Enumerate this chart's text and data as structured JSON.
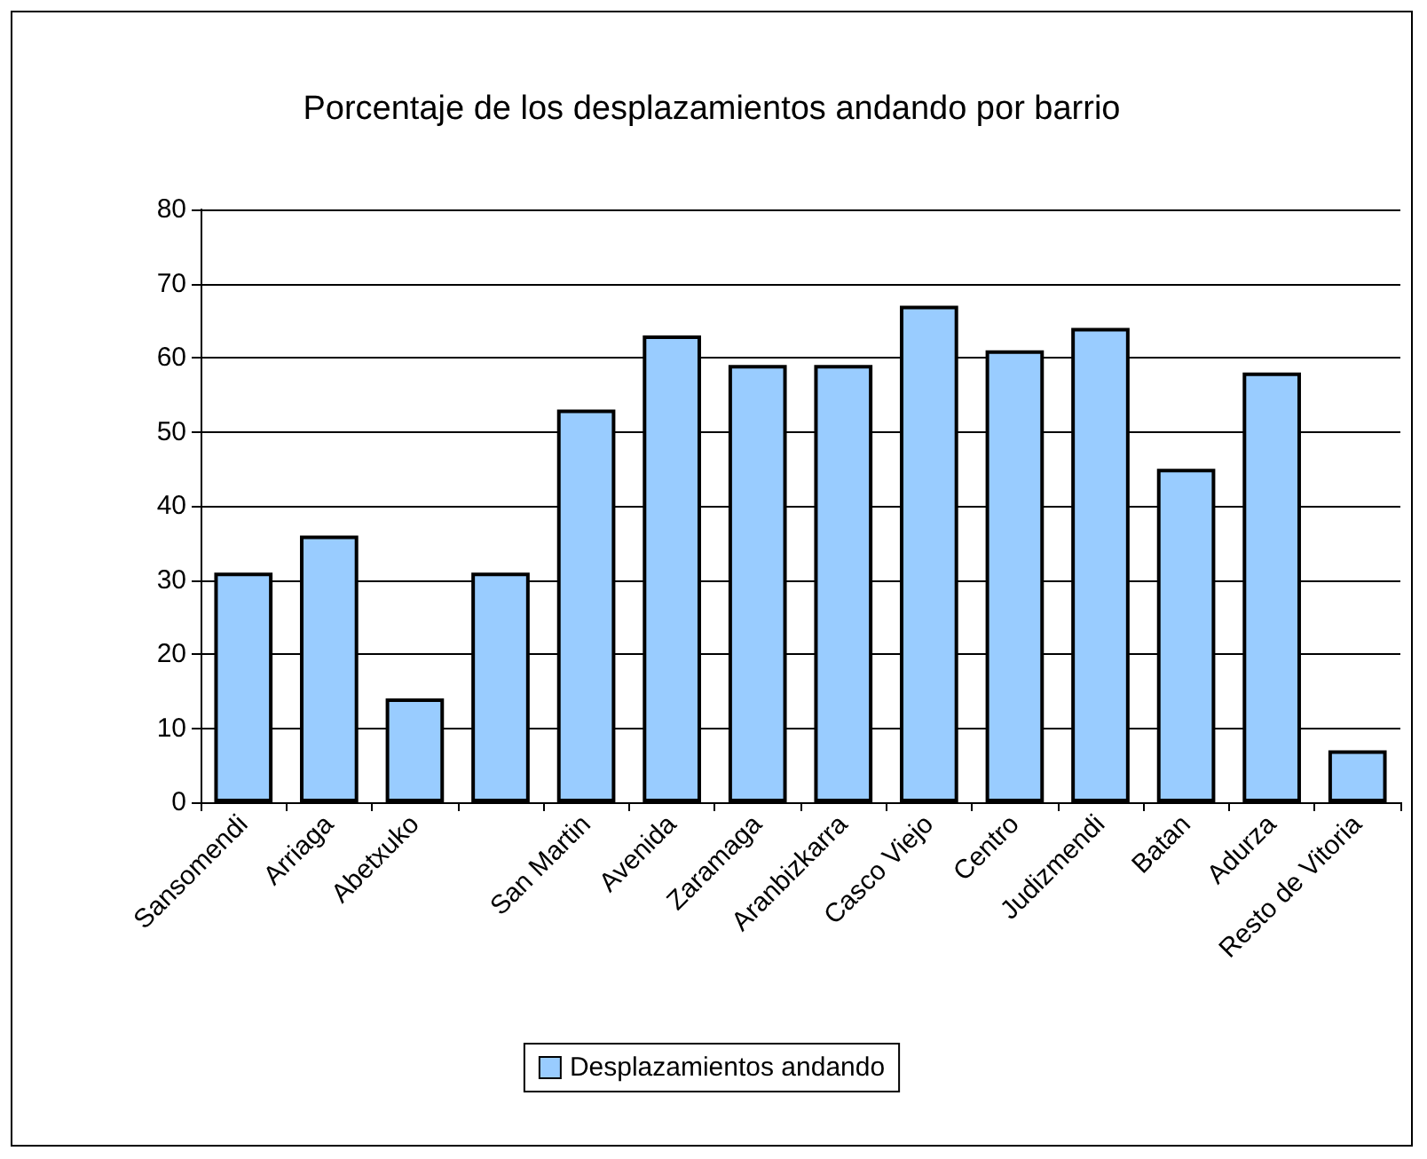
{
  "chart_data": {
    "type": "bar",
    "title": "Porcentaje de los desplazamientos andando por barrio",
    "categories": [
      "Sansomendi",
      "Arriaga",
      "Abetxuko",
      null,
      "San Martin",
      "Avenida",
      "Zaramaga",
      "Aranbizkarra",
      "Casco Viejo",
      "Centro",
      "Judizmendi",
      "Batan",
      "Adurza",
      "Resto de Vitoria"
    ],
    "series": [
      {
        "name": "Desplazamientos andando",
        "color": "#99ccff",
        "values": [
          31,
          36,
          14,
          31,
          53,
          63,
          59,
          59,
          67,
          61,
          64,
          45,
          58,
          7
        ]
      }
    ],
    "ylim": [
      0,
      80
    ],
    "yticks": [
      0,
      10,
      20,
      30,
      40,
      50,
      60,
      70,
      80
    ],
    "grid": "y",
    "legend": "bottom"
  }
}
